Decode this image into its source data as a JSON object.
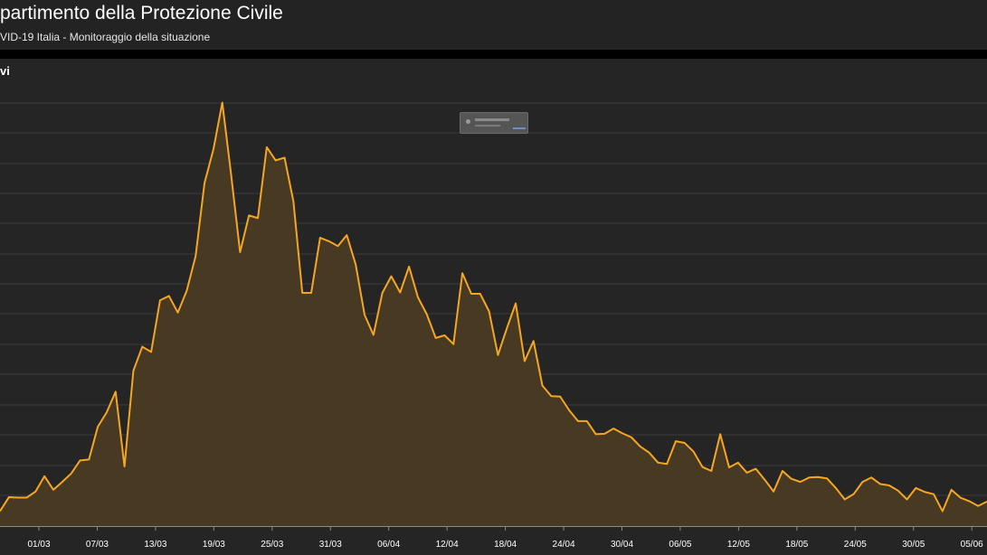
{
  "header": {
    "title": "partimento della Protezione Civile",
    "subtitle": "VID-19 Italia - Monitoraggio della situazione"
  },
  "panel": {
    "title": "vi"
  },
  "colors": {
    "line": "#f5a623",
    "area": "#4a3a22",
    "grid": "#3a3a3a",
    "axis": "#8a8a8a",
    "tick_label": "#ffffff"
  },
  "chart_data": {
    "type": "area",
    "title": "",
    "xlabel": "",
    "ylabel": "",
    "grid": true,
    "legend": "none",
    "x_tick_labels": [
      "01/03",
      "07/03",
      "13/03",
      "19/03",
      "25/03",
      "31/03",
      "06/04",
      "12/04",
      "18/04",
      "24/04",
      "30/04",
      "06/05",
      "12/05",
      "18/05",
      "24/05",
      "30/05",
      "05/06"
    ],
    "x_start": "24/02",
    "x_end": "07/06",
    "ylim": [
      0,
      1000
    ],
    "series": [
      {
        "values": [
          34,
          66,
          65,
          65,
          79,
          114,
          83,
          101,
          120,
          150,
          152,
          227,
          260,
          307,
          136,
          355,
          410,
          398,
          516,
          526,
          488,
          538,
          617,
          784,
          861,
          968,
          802,
          626,
          710,
          704,
          866,
          836,
          842,
          742,
          533,
          533,
          659,
          651,
          640,
          665,
          598,
          483,
          437,
          533,
          571,
          534,
          593,
          523,
          484,
          430,
          436,
          416,
          578,
          531,
          531,
          491,
          391,
          452,
          509,
          377,
          423,
          321,
          297,
          296,
          265,
          240,
          240,
          210,
          211,
          223,
          212,
          203,
          182,
          168,
          145,
          142,
          194,
          190,
          170,
          135,
          126,
          210,
          134,
          145,
          122,
          131,
          106,
          79,
          126,
          108,
          101,
          111,
          112,
          109,
          87,
          61,
          73,
          101,
          111,
          96,
          93,
          81,
          61,
          87,
          78,
          73,
          34,
          83,
          65,
          57,
          46,
          56
        ]
      }
    ]
  }
}
